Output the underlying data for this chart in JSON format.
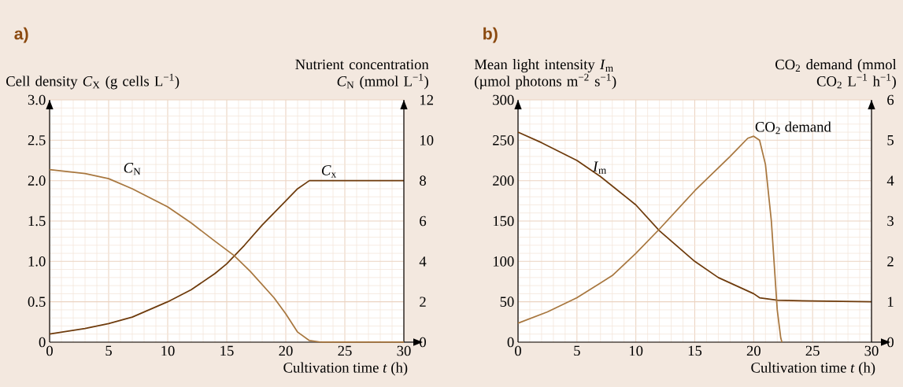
{
  "chart_data": [
    {
      "type": "line",
      "title": "a)",
      "xlabel": "Cultivation time *t* (h)",
      "ylabel": "Cell density *C*$_{X}$ (g cells L$^{−1}$)",
      "y2label": "Nutrient concentration *C*$_{N}$ (mmol L$^{−1}$)",
      "xlim": [
        0,
        30
      ],
      "xticks": [
        0,
        5,
        10,
        15,
        20,
        25,
        30
      ],
      "ylim": [
        0,
        3
      ],
      "yticks": [
        0,
        0.5,
        {
          "value": 1,
          "label": "1.0"
        },
        1.5,
        {
          "value": 2,
          "label": "2.0"
        },
        2.5,
        {
          "value": 3,
          "label": "3.0"
        }
      ],
      "y2lim": [
        0,
        12
      ],
      "y2ticks": [
        0,
        2,
        4,
        6,
        8,
        10,
        12
      ],
      "grid": true,
      "series": [
        {
          "name": "*C*$_{x}$",
          "color": "#6e3b0c",
          "x": [
            0,
            3,
            5,
            7,
            10,
            12,
            14,
            15,
            16.5,
            18,
            20,
            21,
            22,
            30
          ],
          "values": [
            0.1,
            0.17,
            0.23,
            0.31,
            0.5,
            0.65,
            0.85,
            0.97,
            1.2,
            1.45,
            1.75,
            1.9,
            2.0,
            2.0
          ]
        },
        {
          "name": "*C*$_{N}$",
          "color": "#a8773f",
          "axis": "y2",
          "x": [
            0,
            3,
            5,
            7,
            10,
            12,
            14,
            15.6,
            17,
            19,
            20,
            21,
            22,
            23,
            30
          ],
          "values": [
            8.55,
            8.35,
            8.1,
            7.6,
            6.7,
            5.9,
            5.0,
            4.3,
            3.5,
            2.2,
            1.4,
            0.5,
            0.08,
            0,
            0
          ]
        }
      ]
    },
    {
      "type": "line",
      "title": "b)",
      "xlabel": "Cultivation time *t* (h)",
      "ylabel": "Mean light intensity *I*$_{m}$ (µmol photons m$^{−2}$ s$^{−1}$)",
      "y2label": "CO$_{2}$ demand (mmol CO$_{2}$ L$^{−1}$ h$^{−1}$)",
      "xlim": [
        0,
        30
      ],
      "xticks": [
        0,
        5,
        10,
        15,
        20,
        25,
        30
      ],
      "ylim": [
        0,
        300
      ],
      "yticks": [
        0,
        50,
        100,
        150,
        200,
        250,
        300
      ],
      "y2lim": [
        0,
        6
      ],
      "y2ticks": [
        0,
        1,
        2,
        3,
        4,
        5,
        6
      ],
      "grid": true,
      "series": [
        {
          "name": "*I*$_{m}$",
          "color": "#6e3b0c",
          "x": [
            0,
            2,
            5,
            7,
            10,
            12,
            15,
            17,
            20,
            20.5,
            22,
            25,
            30
          ],
          "values": [
            260,
            247,
            225,
            205,
            170,
            138,
            100,
            80,
            60,
            55,
            52,
            51,
            50
          ]
        },
        {
          "name": "CO$_{2}$ demand",
          "color": "#a8773f",
          "axis": "y2",
          "x": [
            0,
            2.5,
            5,
            8,
            10,
            12,
            15,
            18,
            19.5,
            20,
            20.5,
            21,
            21.5,
            22,
            22.3,
            22.4
          ],
          "values": [
            0.47,
            0.75,
            1.1,
            1.65,
            2.2,
            2.8,
            3.75,
            4.6,
            5.05,
            5.1,
            5.0,
            4.4,
            3.0,
            0.8,
            0.1,
            0
          ]
        }
      ]
    }
  ]
}
